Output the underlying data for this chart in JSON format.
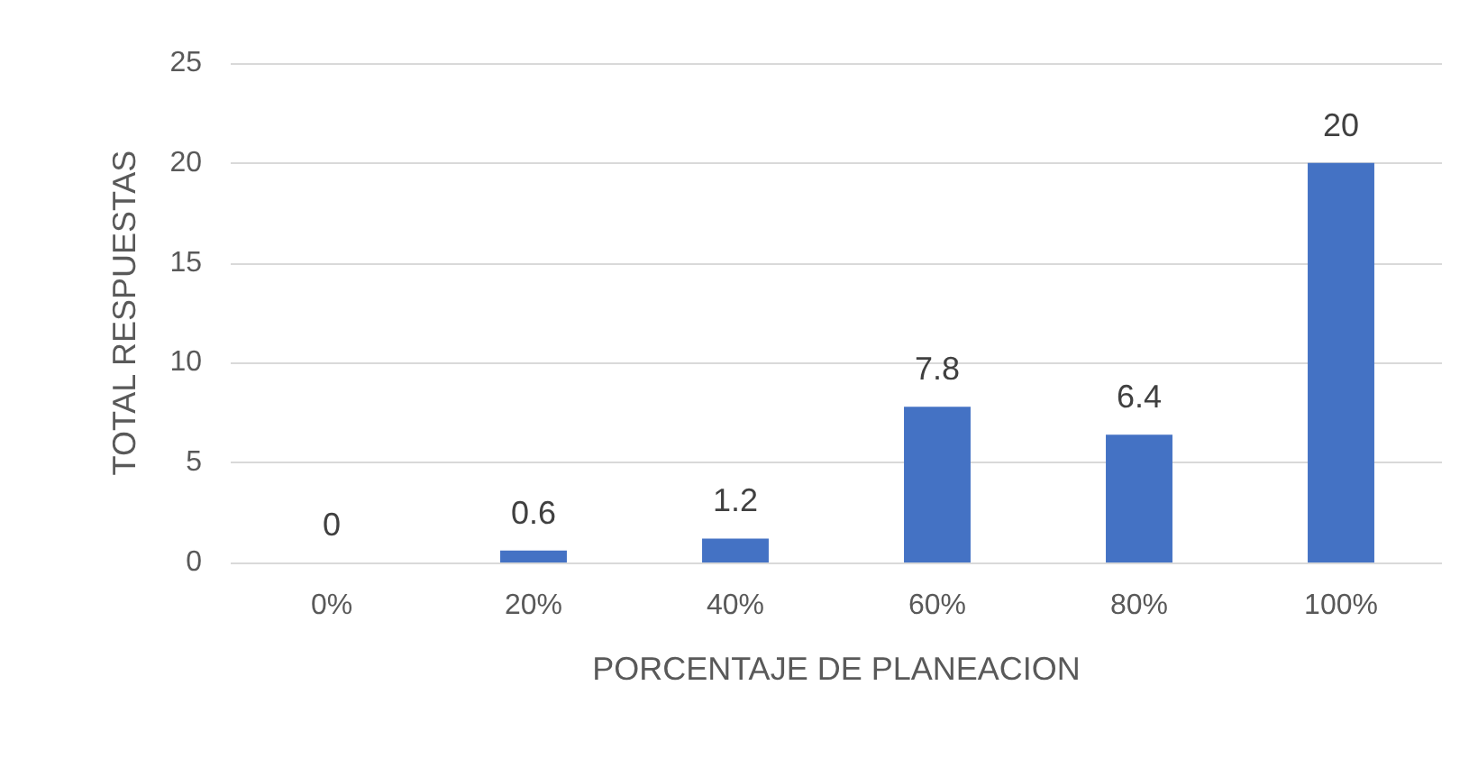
{
  "chart_data": {
    "type": "bar",
    "xlabel": "PORCENTAJE DE PLANEACION",
    "ylabel": "TOTAL RESPUESTAS",
    "categories": [
      "0%",
      "20%",
      "40%",
      "60%",
      "80%",
      "100%"
    ],
    "values": [
      0,
      0.6,
      1.2,
      7.8,
      6.4,
      20
    ],
    "color": "#4472c4",
    "ylim": [
      0,
      25
    ],
    "yticks": [
      0,
      5,
      10,
      15,
      20,
      25
    ],
    "grid": "y",
    "data_labels": true
  }
}
